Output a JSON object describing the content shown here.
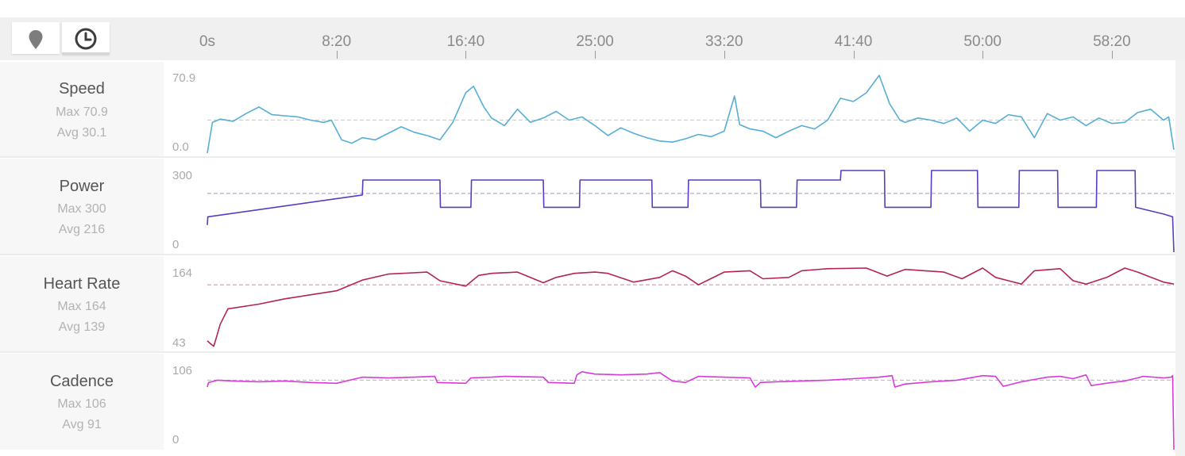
{
  "toolbar": {
    "map_icon": "map-pin-icon",
    "time_icon": "clock-icon"
  },
  "chart_data": {
    "type": "line",
    "x_unit": "elapsed time",
    "x_ticks": [
      "0s",
      "8:20",
      "16:40",
      "25:00",
      "33:20",
      "41:40",
      "50:00",
      "58:20"
    ],
    "x_tick_seconds": [
      0,
      500,
      1000,
      1500,
      2000,
      2500,
      3000,
      3500
    ],
    "xlim_seconds": [
      0,
      3740
    ],
    "panels": [
      {
        "name": "Speed",
        "max_label": "Max 70.9",
        "avg_label": "Avg 30.1",
        "ylim": [
          0,
          70.9
        ],
        "ytick_top": "70.9",
        "ytick_bottom": "0.0",
        "avg": 30.1,
        "color": "#56aed6",
        "x": [
          0,
          20,
          50,
          100,
          150,
          200,
          250,
          300,
          350,
          400,
          450,
          480,
          520,
          560,
          600,
          650,
          700,
          750,
          800,
          850,
          900,
          950,
          1000,
          1030,
          1070,
          1100,
          1150,
          1200,
          1250,
          1300,
          1350,
          1400,
          1450,
          1500,
          1550,
          1600,
          1650,
          1700,
          1750,
          1800,
          1850,
          1900,
          1950,
          2000,
          2040,
          2060,
          2100,
          2150,
          2200,
          2250,
          2300,
          2350,
          2400,
          2450,
          2500,
          2550,
          2600,
          2640,
          2680,
          2700,
          2750,
          2800,
          2850,
          2900,
          2950,
          3000,
          3050,
          3100,
          3150,
          3200,
          3250,
          3300,
          3350,
          3400,
          3450,
          3500,
          3550,
          3600,
          3650,
          3700,
          3720,
          3740
        ],
        "y": [
          0,
          28,
          31,
          29,
          36,
          42,
          35,
          34,
          33,
          30,
          28,
          30,
          12,
          9,
          14,
          12,
          18,
          24,
          19,
          16,
          12,
          28,
          55,
          61,
          42,
          32,
          25,
          40,
          28,
          32,
          38,
          30,
          33,
          25,
          16,
          23,
          18,
          14,
          11,
          10,
          13,
          17,
          15,
          20,
          52,
          26,
          22,
          20,
          14,
          20,
          25,
          22,
          30,
          50,
          47,
          55,
          70.9,
          45,
          30,
          28,
          32,
          30,
          27,
          32,
          20,
          30,
          27,
          35,
          33,
          14,
          36,
          30,
          33,
          25,
          32,
          27,
          28,
          37,
          40,
          30,
          33,
          3
        ]
      },
      {
        "name": "Power",
        "max_label": "Max 300",
        "avg_label": "Avg 216",
        "ylim": [
          0,
          300
        ],
        "ytick_top": "300",
        "ytick_bottom": "0",
        "avg": 216,
        "color": "#5b3bbf",
        "x": [
          0,
          2,
          600,
          602,
          900,
          902,
          1020,
          1022,
          1300,
          1302,
          1440,
          1442,
          1720,
          1722,
          1860,
          1862,
          2140,
          2142,
          2280,
          2282,
          2450,
          2452,
          2620,
          2622,
          2800,
          2802,
          2980,
          2982,
          3140,
          3142,
          3290,
          3292,
          3440,
          3442,
          3590,
          3592,
          3700,
          3735,
          3740
        ],
        "y": [
          100,
          130,
          210,
          265,
          265,
          165,
          165,
          265,
          265,
          165,
          165,
          265,
          265,
          165,
          165,
          265,
          265,
          165,
          165,
          265,
          265,
          300,
          300,
          165,
          165,
          300,
          300,
          165,
          165,
          300,
          300,
          165,
          165,
          300,
          300,
          165,
          140,
          130,
          0
        ]
      },
      {
        "name": "Heart Rate",
        "max_label": "Max 164",
        "avg_label": "Avg 139",
        "ylim": [
          43,
          164
        ],
        "ytick_top": "164",
        "ytick_bottom": "43",
        "avg": 139,
        "color": "#b32550",
        "x": [
          0,
          15,
          25,
          35,
          50,
          80,
          200,
          300,
          400,
          500,
          600,
          700,
          850,
          900,
          1000,
          1050,
          1100,
          1200,
          1300,
          1350,
          1420,
          1500,
          1550,
          1650,
          1750,
          1800,
          1850,
          1900,
          2000,
          2100,
          2150,
          2250,
          2300,
          2400,
          2550,
          2630,
          2700,
          2850,
          2920,
          3000,
          3050,
          3150,
          3200,
          3300,
          3350,
          3400,
          3480,
          3550,
          3600,
          3700,
          3740
        ],
        "y": [
          55,
          50,
          47,
          60,
          80,
          103,
          110,
          118,
          124,
          130,
          146,
          155,
          158,
          145,
          137,
          153,
          156,
          158,
          142,
          150,
          156,
          158,
          156,
          143,
          150,
          160,
          152,
          139,
          158,
          160,
          148,
          150,
          160,
          163,
          164,
          152,
          162,
          158,
          148,
          164,
          150,
          140,
          160,
          163,
          145,
          140,
          150,
          164,
          158,
          143,
          140
        ]
      },
      {
        "name": "Cadence",
        "max_label": "Max 106",
        "avg_label": "Avg 91",
        "ylim": [
          0,
          106
        ],
        "ytick_top": "106",
        "ytick_bottom": "0",
        "avg": 91,
        "color": "#d63ad9",
        "x": [
          0,
          5,
          40,
          100,
          200,
          300,
          400,
          500,
          600,
          700,
          800,
          880,
          890,
          1000,
          1020,
          1100,
          1150,
          1300,
          1320,
          1420,
          1430,
          1450,
          1500,
          1600,
          1700,
          1750,
          1800,
          1850,
          1900,
          2000,
          2100,
          2120,
          2140,
          2200,
          2300,
          2400,
          2500,
          2600,
          2650,
          2660,
          2700,
          2800,
          2900,
          3000,
          3050,
          3080,
          3150,
          3200,
          3250,
          3300,
          3350,
          3400,
          3420,
          3500,
          3550,
          3600,
          3620,
          3700,
          3730,
          3735,
          3740
        ],
        "y": [
          82,
          88,
          91,
          90,
          89,
          90,
          88,
          87,
          95,
          94,
          95,
          96,
          88,
          87,
          94,
          95,
          96,
          95,
          88,
          87,
          98,
          102,
          99,
          98,
          99,
          101,
          90,
          88,
          96,
          95,
          94,
          82,
          88,
          89,
          90,
          91,
          93,
          95,
          97,
          82,
          86,
          89,
          91,
          97,
          96,
          83,
          89,
          92,
          95,
          96,
          93,
          98,
          84,
          88,
          90,
          94,
          96,
          94,
          95,
          97,
          0
        ]
      }
    ]
  }
}
